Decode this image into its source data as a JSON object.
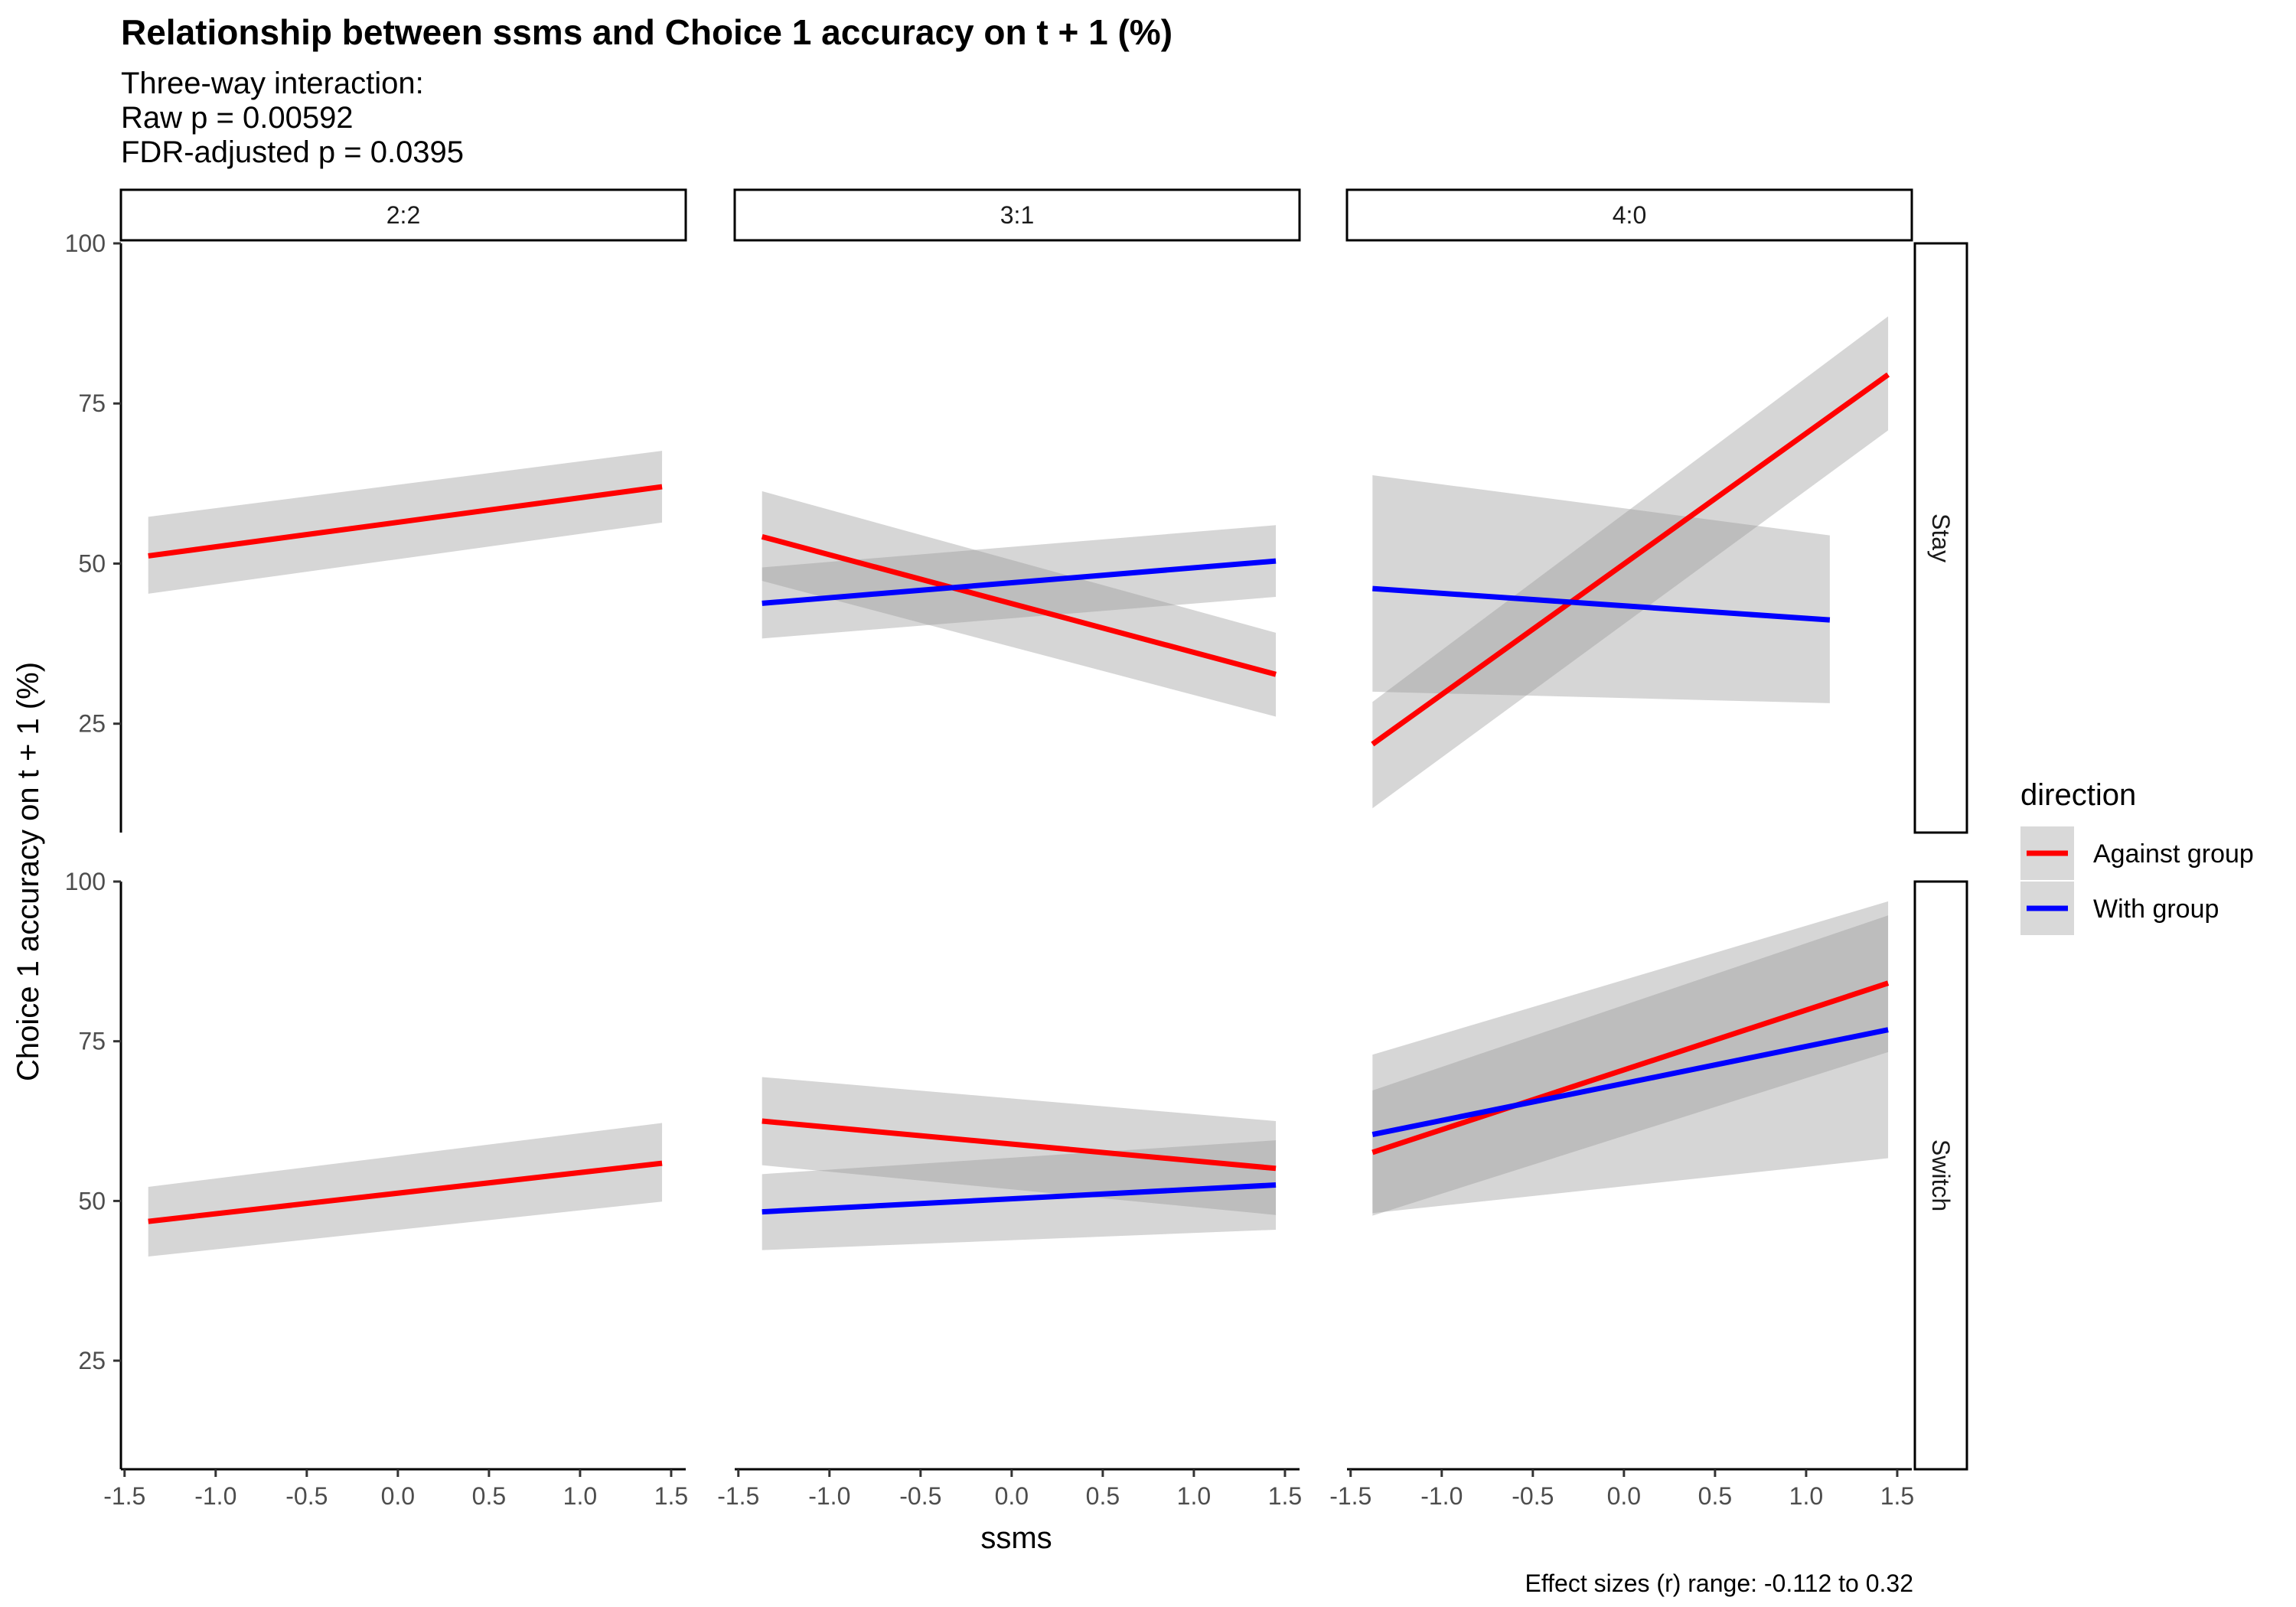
{
  "chart_data": {
    "type": "line",
    "title": "Relationship between ssms and Choice 1 accuracy on t + 1 (%)",
    "subtitle_lines": [
      "Three-way interaction:",
      "Raw p = 0.00592",
      "FDR-adjusted p = 0.0395"
    ],
    "xlabel": "ssms",
    "ylabel": "Choice 1 accuracy on t + 1 (%)",
    "caption": "Effect sizes (r) range: -0.112 to 0.32",
    "xlim": [
      -1.52,
      1.58
    ],
    "ylim": [
      8,
      100
    ],
    "x_ticks": [
      -1.5,
      -1.0,
      -0.5,
      0.0,
      0.5,
      1.0,
      1.5
    ],
    "x_tick_labels": [
      "-1.5",
      "-1.0",
      "-0.5",
      "0.0",
      "0.5",
      "1.0",
      "1.5"
    ],
    "y_ticks": [
      25,
      50,
      75,
      100
    ],
    "y_tick_labels": [
      "25",
      "50",
      "75",
      "100"
    ],
    "grid": false,
    "column_facets": [
      "2:2",
      "3:1",
      "4:0"
    ],
    "row_facets": [
      "Stay",
      "Switch"
    ],
    "legend": {
      "title": "direction",
      "position": "right",
      "entries": [
        {
          "label": "Against group",
          "color": "#ff0000"
        },
        {
          "label": "With group",
          "color": "#0000ff"
        }
      ]
    },
    "ribbon_color": "#999999",
    "panels": [
      {
        "col": "2:2",
        "row": "Stay",
        "series": [
          {
            "name": "Against group",
            "color": "#ff0000",
            "x": [
              -1.37,
              1.45
            ],
            "y": [
              51.2,
              62.0
            ],
            "lower": [
              45.3,
              56.4
            ],
            "upper": [
              57.3,
              67.6
            ]
          }
        ]
      },
      {
        "col": "3:1",
        "row": "Stay",
        "series": [
          {
            "name": "Against group",
            "color": "#ff0000",
            "x": [
              -1.37,
              1.45
            ],
            "y": [
              54.2,
              32.7
            ],
            "lower": [
              47.3,
              26.1
            ],
            "upper": [
              61.3,
              39.2
            ]
          },
          {
            "name": "With group",
            "color": "#0000ff",
            "x": [
              -1.37,
              1.45
            ],
            "y": [
              43.8,
              50.4
            ],
            "lower": [
              38.3,
              44.8
            ],
            "upper": [
              49.4,
              56.0
            ]
          }
        ]
      },
      {
        "col": "4:0",
        "row": "Stay",
        "series": [
          {
            "name": "Against group",
            "color": "#ff0000",
            "x": [
              -1.38,
              1.45
            ],
            "y": [
              21.8,
              79.5
            ],
            "lower": [
              11.8,
              70.8
            ],
            "upper": [
              28.4,
              88.6
            ]
          },
          {
            "name": "With group",
            "color": "#0000ff",
            "x": [
              -1.38,
              1.13
            ],
            "y": [
              46.1,
              41.2
            ],
            "lower": [
              30.0,
              28.2
            ],
            "upper": [
              63.8,
              54.4
            ]
          }
        ]
      },
      {
        "col": "2:2",
        "row": "Switch",
        "series": [
          {
            "name": "Against group",
            "color": "#ff0000",
            "x": [
              -1.37,
              1.45
            ],
            "y": [
              46.8,
              55.9
            ],
            "lower": [
              41.3,
              49.9
            ],
            "upper": [
              52.2,
              62.2
            ]
          }
        ]
      },
      {
        "col": "3:1",
        "row": "Switch",
        "series": [
          {
            "name": "Against group",
            "color": "#ff0000",
            "x": [
              -1.37,
              1.45
            ],
            "y": [
              62.5,
              55.1
            ],
            "lower": [
              55.6,
              47.8
            ],
            "upper": [
              69.4,
              62.5
            ]
          },
          {
            "name": "With group",
            "color": "#0000ff",
            "x": [
              -1.37,
              1.45
            ],
            "y": [
              48.3,
              52.5
            ],
            "lower": [
              42.3,
              45.5
            ],
            "upper": [
              54.2,
              59.5
            ]
          }
        ]
      },
      {
        "col": "4:0",
        "row": "Switch",
        "series": [
          {
            "name": "Against group",
            "color": "#ff0000",
            "x": [
              -1.38,
              1.45
            ],
            "y": [
              57.6,
              84.1
            ],
            "lower": [
              47.7,
              73.3
            ],
            "upper": [
              67.3,
              94.7
            ]
          },
          {
            "name": "With group",
            "color": "#0000ff",
            "x": [
              -1.38,
              1.45
            ],
            "y": [
              60.4,
              76.8
            ],
            "lower": [
              48.1,
              56.7
            ],
            "upper": [
              72.9,
              96.9
            ]
          }
        ]
      }
    ]
  }
}
